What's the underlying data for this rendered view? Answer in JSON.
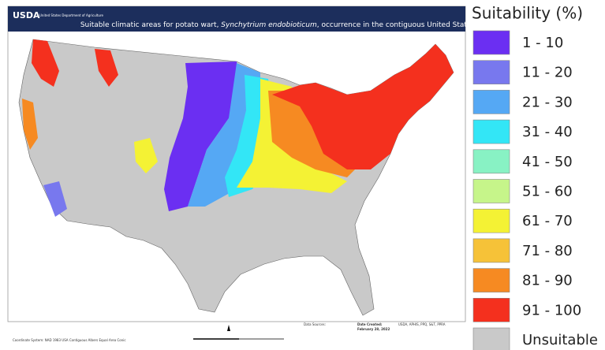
{
  "header": {
    "agency": "USDA",
    "agency_name": "United States Department of Agriculture",
    "title_parts": [
      "Suitable climatic areas for potato wart, ",
      "Synchytrium endobioticum",
      ", occurrence in the contiguous United States"
    ]
  },
  "legend": {
    "title": "Suitability (%)",
    "items": [
      {
        "label": "1 - 10",
        "color": "#6b2ff2"
      },
      {
        "label": "11 - 20",
        "color": "#7878ee"
      },
      {
        "label": "21 - 30",
        "color": "#55a8f4"
      },
      {
        "label": "31 - 40",
        "color": "#33e6f6"
      },
      {
        "label": "41 - 50",
        "color": "#88f2c4"
      },
      {
        "label": "51 - 60",
        "color": "#c6f58a"
      },
      {
        "label": "61 - 70",
        "color": "#f4f234"
      },
      {
        "label": "71 - 80",
        "color": "#f6c238"
      },
      {
        "label": "81 - 90",
        "color": "#f68a22"
      },
      {
        "label": "91 - 100",
        "color": "#f4301e"
      },
      {
        "label": "Unsuitable",
        "color": "#c9c9c9"
      }
    ]
  },
  "footer": {
    "coordinate_system": "Coordinate System: NAD 1983 USA Contiguous Albers Equal Area Conic",
    "data_sources": "Data Sources:",
    "date_created_label": "Date Created:",
    "date_created": "February 28, 2022",
    "producer": "USDA, APHIS, PPQ, S&T, PPRA"
  }
}
